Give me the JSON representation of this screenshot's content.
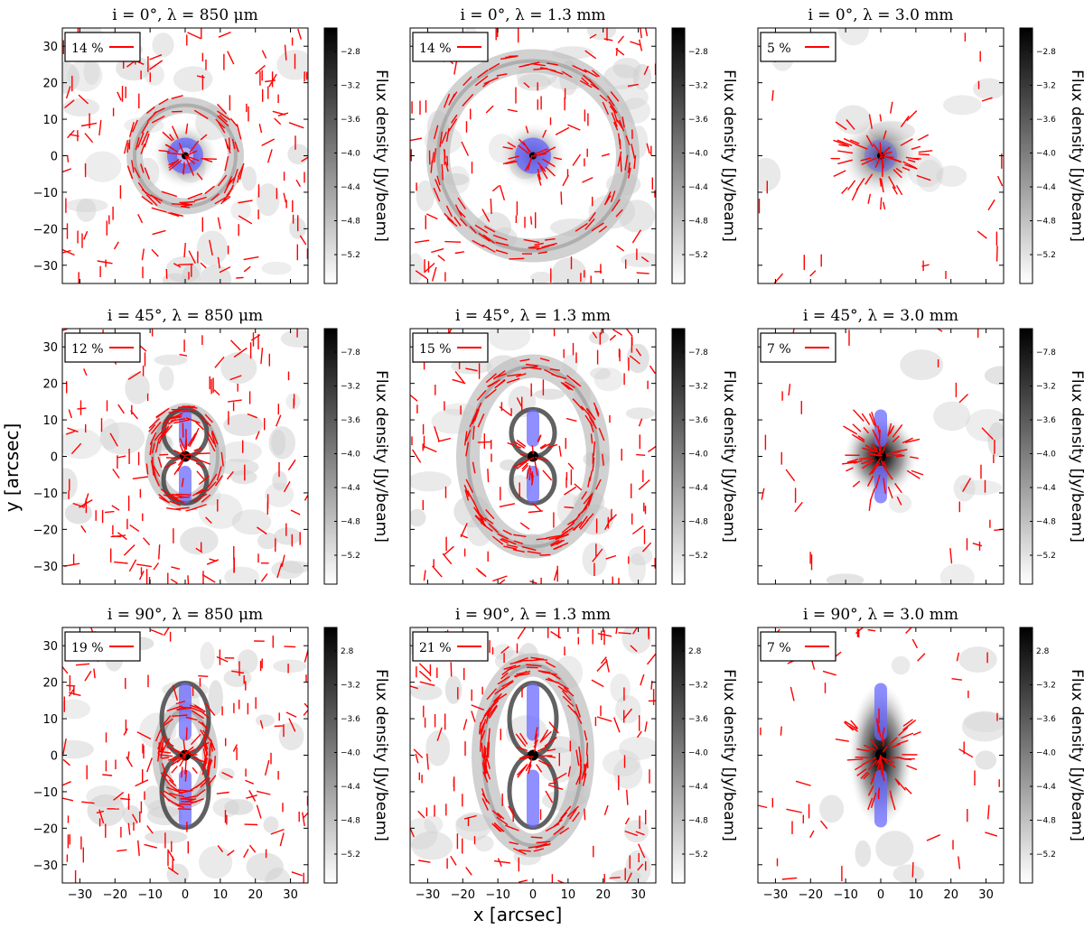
{
  "figure": {
    "xlabel": "x [arcsec]",
    "ylabel": "y [arcsec]",
    "colorbar_label": "Flux density [Jy/beam]",
    "colors": {
      "vector": "#ff0000",
      "ionized": "#6a6aff",
      "grayscale": "white-to-black"
    }
  },
  "chart_data": [
    {
      "type": "heatmap",
      "title": "i = 0°, λ = 850 μm",
      "inclination": "0°",
      "wavelength": "850 μm",
      "legend": "14 %",
      "colorbar_ticks": [
        "-2.8",
        "-3.2",
        "-3.6",
        "-4.0",
        "-4.4",
        "-4.8",
        "-5.2"
      ],
      "xlim": [
        -35,
        35
      ],
      "ylim": [
        -35,
        35
      ],
      "x_ticks": [
        -30,
        -20,
        -10,
        0,
        10,
        20,
        30
      ],
      "y_ticks": [
        30,
        20,
        10,
        0,
        -10,
        -20,
        -30
      ]
    },
    {
      "type": "heatmap",
      "title": "i = 0°, λ = 1.3 mm",
      "inclination": "0°",
      "wavelength": "1.3 mm",
      "legend": "14 %",
      "colorbar_ticks": [
        "-2.8",
        "-3.2",
        "-3.6",
        "-4.0",
        "-4.4",
        "-4.8",
        "-5.2"
      ],
      "xlim": [
        -35,
        35
      ],
      "ylim": [
        -35,
        35
      ],
      "x_ticks": [
        -30,
        -20,
        -10,
        0,
        10,
        20,
        30
      ],
      "y_ticks": [
        30,
        20,
        10,
        0,
        -10,
        -20,
        -30
      ]
    },
    {
      "type": "heatmap",
      "title": "i = 0°, λ = 3.0 mm",
      "inclination": "0°",
      "wavelength": "3.0 mm",
      "legend": "5 %",
      "colorbar_ticks": [
        "-2.8",
        "-3.2",
        "-3.6",
        "-4.0",
        "-4.4",
        "-4.8",
        "-5.2"
      ],
      "xlim": [
        -35,
        35
      ],
      "ylim": [
        -35,
        35
      ],
      "x_ticks": [
        -30,
        -20,
        -10,
        0,
        10,
        20,
        30
      ],
      "y_ticks": [
        30,
        20,
        10,
        0,
        -10,
        -20,
        -30
      ]
    },
    {
      "type": "heatmap",
      "title": "i = 45°, λ = 850 μm",
      "inclination": "45°",
      "wavelength": "850 μm",
      "legend": "12 %",
      "colorbar_ticks": [
        "-7.8",
        "-3.2",
        "-3.6",
        "-4.0",
        "-4.4",
        "-4.8",
        "-5.2"
      ],
      "xlim": [
        -35,
        35
      ],
      "ylim": [
        -35,
        35
      ],
      "x_ticks": [
        -30,
        -20,
        -10,
        0,
        10,
        20,
        30
      ],
      "y_ticks": [
        30,
        20,
        10,
        0,
        -10,
        -20,
        -30
      ]
    },
    {
      "type": "heatmap",
      "title": "i = 45°, λ = 1.3 mm",
      "inclination": "45°",
      "wavelength": "1.3 mm",
      "legend": "15 %",
      "colorbar_ticks": [
        "-7.8",
        "-3.2",
        "-3.6",
        "-4.0",
        "-4.4",
        "-4.8",
        "-5.2"
      ],
      "xlim": [
        -35,
        35
      ],
      "ylim": [
        -35,
        35
      ],
      "x_ticks": [
        -30,
        -20,
        -10,
        0,
        10,
        20,
        30
      ],
      "y_ticks": [
        30,
        20,
        10,
        0,
        -10,
        -20,
        -30
      ]
    },
    {
      "type": "heatmap",
      "title": "i = 45°, λ = 3.0 mm",
      "inclination": "45°",
      "wavelength": "3.0 mm",
      "legend": "7 %",
      "colorbar_ticks": [
        "-7.8",
        "-3.2",
        "-3.6",
        "-4.0",
        "-4.4",
        "-4.8",
        "-5.2"
      ],
      "xlim": [
        -35,
        35
      ],
      "ylim": [
        -35,
        35
      ],
      "x_ticks": [
        -30,
        -20,
        -10,
        0,
        10,
        20,
        30
      ],
      "y_ticks": [
        30,
        20,
        10,
        0,
        -10,
        -20,
        -30
      ]
    },
    {
      "type": "heatmap",
      "title": "i = 90°, λ = 850 μm",
      "inclination": "90°",
      "wavelength": "850 μm",
      "legend": "19 %",
      "colorbar_ticks": [
        "2.8",
        "-3.2",
        "-3.6",
        "-4.0",
        "-4.4",
        "-4.8",
        "-5.2"
      ],
      "xlim": [
        -35,
        35
      ],
      "ylim": [
        -35,
        35
      ],
      "x_ticks": [
        -30,
        -20,
        -10,
        0,
        10,
        20,
        30
      ],
      "y_ticks": [
        30,
        20,
        10,
        0,
        -10,
        -20,
        -30
      ]
    },
    {
      "type": "heatmap",
      "title": "i = 90°, λ = 1.3 mm",
      "inclination": "90°",
      "wavelength": "1.3 mm",
      "legend": "21 %",
      "colorbar_ticks": [
        "2.8",
        "-3.2",
        "-3.6",
        "-4.0",
        "-4.4",
        "-4.8",
        "-5.2"
      ],
      "xlim": [
        -35,
        35
      ],
      "ylim": [
        -35,
        35
      ],
      "x_ticks": [
        -30,
        -20,
        -10,
        0,
        10,
        20,
        30
      ],
      "y_ticks": [
        30,
        20,
        10,
        0,
        -10,
        -20,
        -30
      ]
    },
    {
      "type": "heatmap",
      "title": "i = 90°, λ = 3.0 mm",
      "inclination": "90°",
      "wavelength": "3.0 mm",
      "legend": "7 %",
      "colorbar_ticks": [
        "2.8",
        "-3.2",
        "-3.6",
        "-4.0",
        "-4.4",
        "-4.8",
        "-5.2"
      ],
      "xlim": [
        -35,
        35
      ],
      "ylim": [
        -35,
        35
      ],
      "x_ticks": [
        -30,
        -20,
        -10,
        0,
        10,
        20,
        30
      ],
      "y_ticks": [
        30,
        20,
        10,
        0,
        -10,
        -20,
        -30
      ]
    }
  ]
}
